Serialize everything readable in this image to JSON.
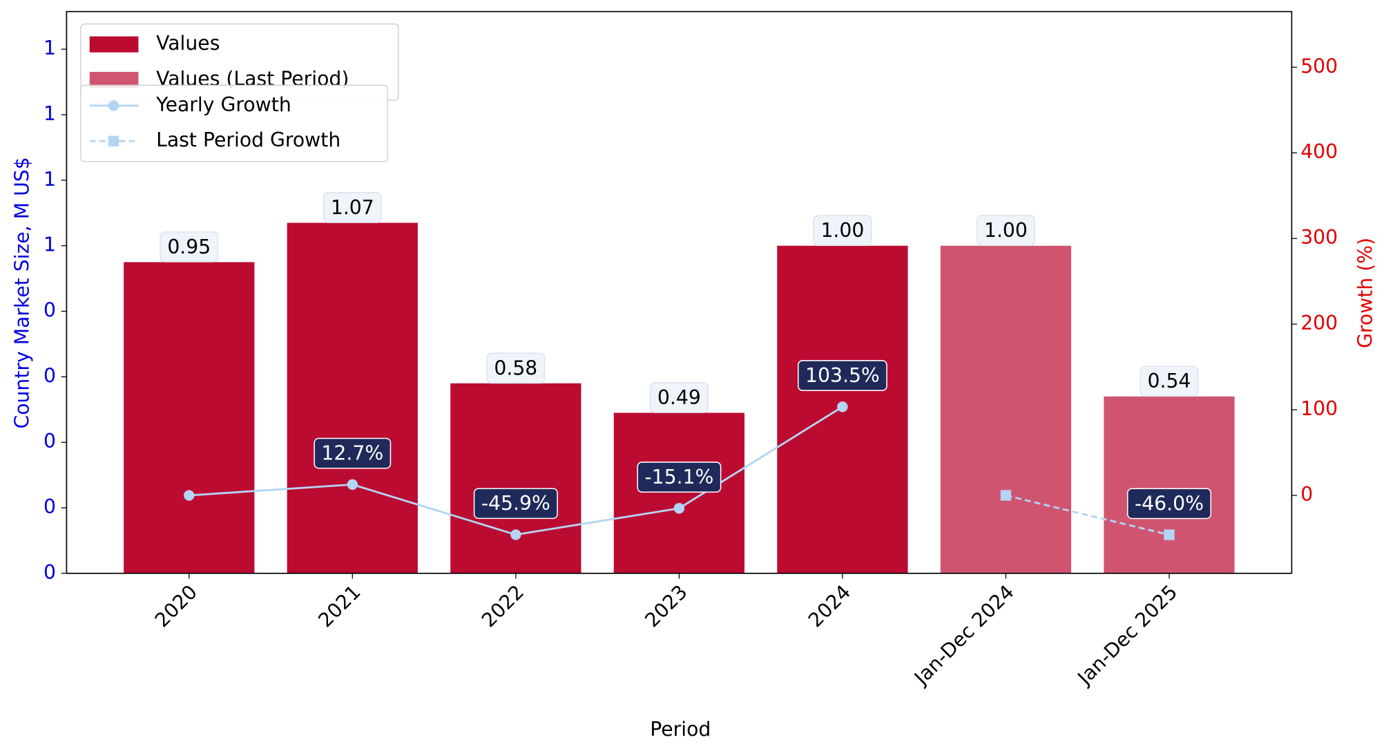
{
  "chart_data": {
    "type": "bar",
    "categories": [
      "2020",
      "2021",
      "2022",
      "2023",
      "2024",
      "Jan-Dec 2024",
      "Jan-Dec 2025"
    ],
    "x_label": "Period",
    "y_label": "Country Market Size, M US$",
    "y2_label": "Growth (%)",
    "ylim": [
      0,
      1.715
    ],
    "yticks": [
      {
        "value": 0,
        "label": "0"
      },
      {
        "value": 0.2,
        "label": "0"
      },
      {
        "value": 0.4,
        "label": "0"
      },
      {
        "value": 0.6,
        "label": "0"
      },
      {
        "value": 0.8,
        "label": "0"
      },
      {
        "value": 1.0,
        "label": "1"
      },
      {
        "value": 1.2,
        "label": "1"
      },
      {
        "value": 1.4,
        "label": "1"
      },
      {
        "value": 1.6,
        "label": "1"
      }
    ],
    "y2lim": [
      -91,
      565
    ],
    "y2ticks": [
      0,
      100,
      200,
      300,
      400,
      500
    ],
    "series": [
      {
        "name": "Values",
        "type": "bar",
        "color": "#bc0b31",
        "values": [
          0.95,
          1.07,
          0.58,
          0.49,
          1.0,
          null,
          null
        ],
        "value_labels": [
          "0.95",
          "1.07",
          "0.58",
          "0.49",
          "1.00",
          null,
          null
        ]
      },
      {
        "name": "Values (Last Period)",
        "type": "bar",
        "color": "#d05470",
        "values": [
          null,
          null,
          null,
          null,
          null,
          1.0,
          0.54
        ],
        "value_labels": [
          null,
          null,
          null,
          null,
          null,
          "1.00",
          "0.54"
        ]
      },
      {
        "name": "Yearly Growth",
        "type": "line",
        "axis": "y2",
        "color": "#b3d4f5",
        "marker": "circle",
        "dash": false,
        "values": [
          0,
          12.7,
          -45.9,
          -15.1,
          103.5,
          null,
          null
        ],
        "value_labels": [
          null,
          "12.7%",
          "-45.9%",
          "-15.1%",
          "103.5%",
          null,
          null
        ]
      },
      {
        "name": "Last Period Growth",
        "type": "line",
        "axis": "y2",
        "color": "#b3d4f5",
        "marker": "square",
        "dash": true,
        "values": [
          null,
          null,
          null,
          null,
          null,
          0,
          -46.0
        ],
        "value_labels": [
          null,
          null,
          null,
          null,
          null,
          null,
          "-46.0%"
        ]
      }
    ]
  }
}
